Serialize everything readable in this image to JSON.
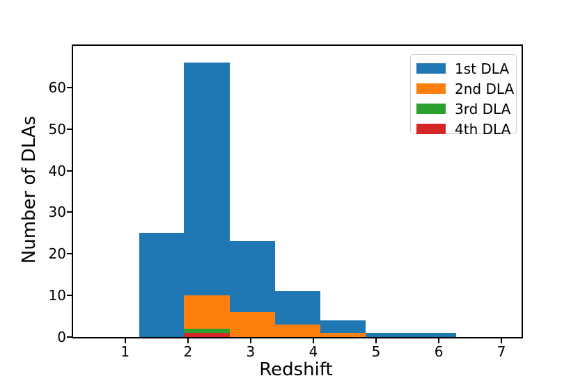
{
  "figure": {
    "background": "#ffffff",
    "frame_color": "#000000"
  },
  "chart_data": {
    "type": "bar",
    "subtype": "histogram-overlaid",
    "title": "",
    "xlabel": "Redshift",
    "ylabel": "Number of DLAs",
    "bin_edges": [
      1.22,
      1.94,
      2.67,
      3.39,
      4.11,
      4.83,
      5.56,
      6.28
    ],
    "series": [
      {
        "name": "1st DLA",
        "color": "#1f77b4",
        "values": [
          25,
          66,
          23,
          11,
          4,
          1,
          1
        ]
      },
      {
        "name": "2nd DLA",
        "color": "#ff7f0e",
        "values": [
          0,
          10,
          6,
          3,
          1,
          0,
          0
        ]
      },
      {
        "name": "3rd DLA",
        "color": "#2ca02c",
        "values": [
          0,
          2,
          0,
          0,
          0,
          0,
          0
        ]
      },
      {
        "name": "4th DLA",
        "color": "#d62728",
        "values": [
          0,
          1,
          0,
          0,
          0,
          0,
          0
        ]
      }
    ],
    "x_ticks": [
      1,
      2,
      3,
      4,
      5,
      6,
      7
    ],
    "y_ticks": [
      0,
      10,
      20,
      30,
      40,
      50,
      60
    ],
    "xlim": [
      0.17,
      7.32
    ],
    "ylim": [
      0,
      70
    ],
    "grid": false,
    "legend": {
      "position": "upper right",
      "entries": [
        "1st DLA",
        "2nd DLA",
        "3rd DLA",
        "4th DLA"
      ]
    }
  }
}
